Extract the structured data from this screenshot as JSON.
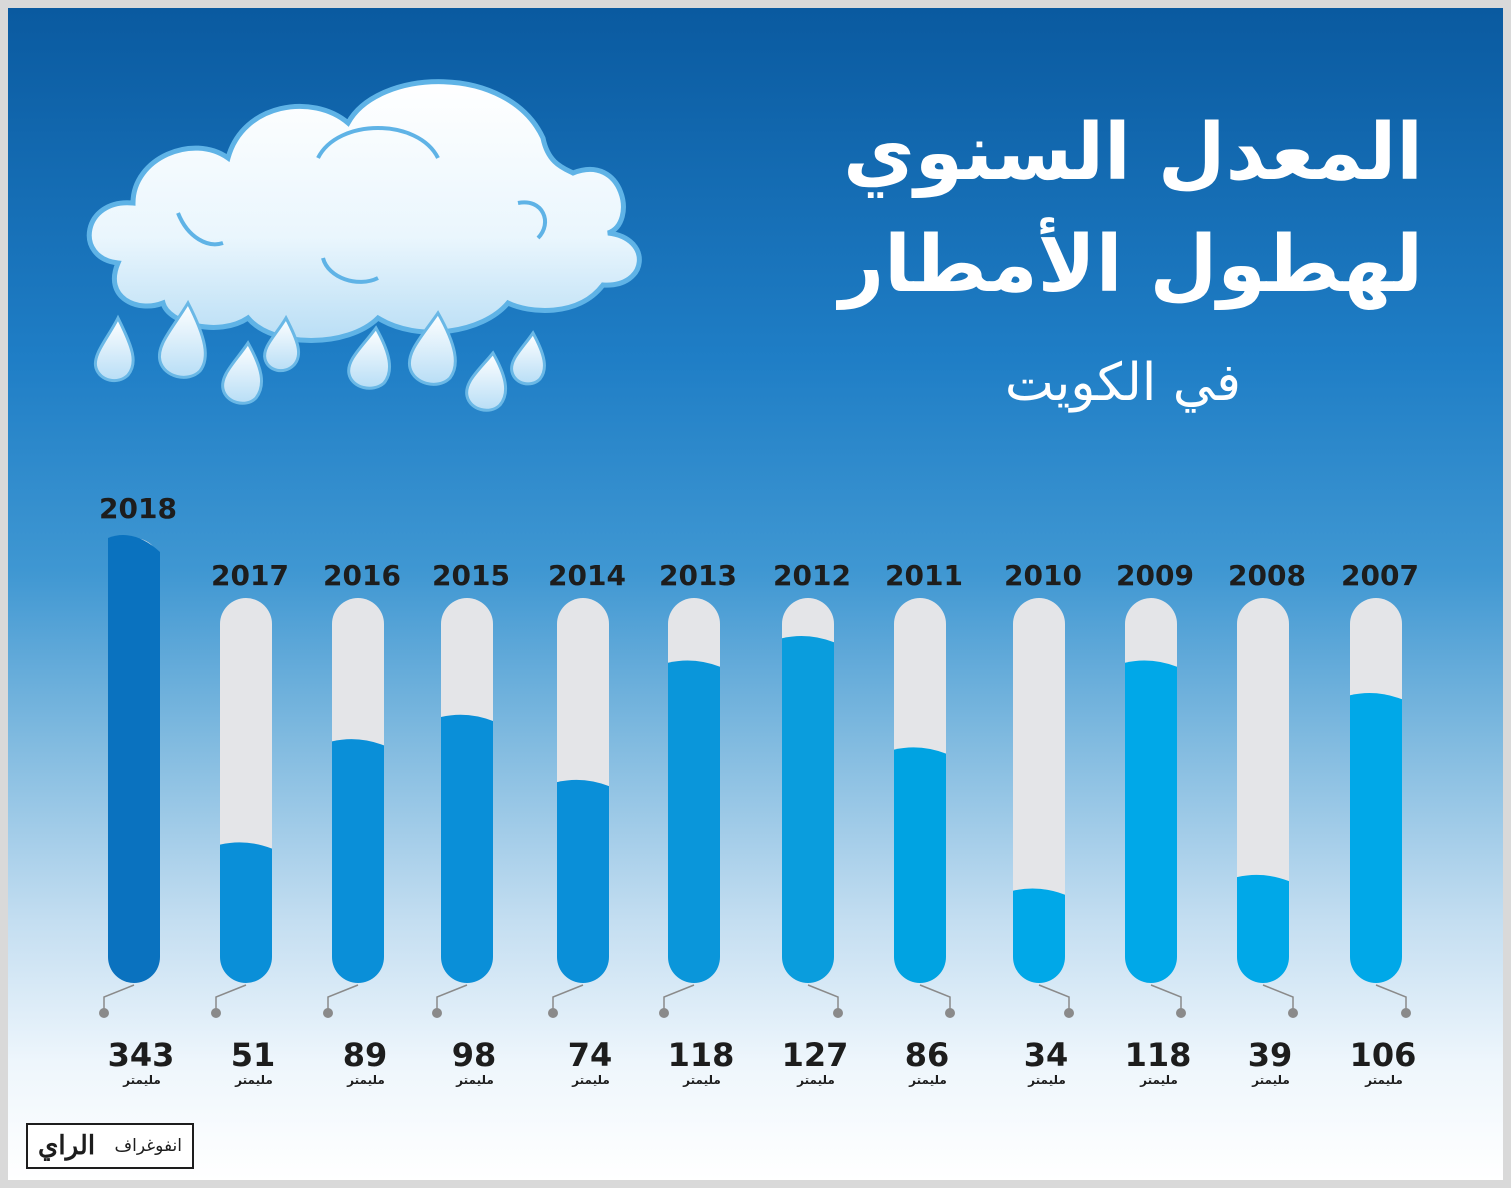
{
  "title": {
    "line1": "المعدل السنوي",
    "line2": "لهطول الأمطار",
    "line3": "في الكويت"
  },
  "branding": {
    "logo": "الراي",
    "label": "انفوغراف"
  },
  "icon": "rain-cloud-icon",
  "colors": {
    "empty_track": "#e4e5e8",
    "fill_2018": "#0a72bf",
    "fill_mid": "#0a8fd8",
    "fill_light": "#00a8e8"
  },
  "chart_data": {
    "type": "bar",
    "unit": "مليمتر",
    "categories": [
      "2018",
      "2017",
      "2016",
      "2015",
      "2014",
      "2013",
      "2012",
      "2011",
      "2010",
      "2009",
      "2008",
      "2007"
    ],
    "values": [
      343,
      51,
      89,
      98,
      74,
      118,
      127,
      86,
      34,
      118,
      39,
      106
    ],
    "value_labels": [
      "343",
      "51",
      "89",
      "98",
      "74",
      "118",
      "127",
      "86",
      "34",
      "118",
      "39",
      "106"
    ],
    "ylim": [
      0,
      140
    ]
  }
}
